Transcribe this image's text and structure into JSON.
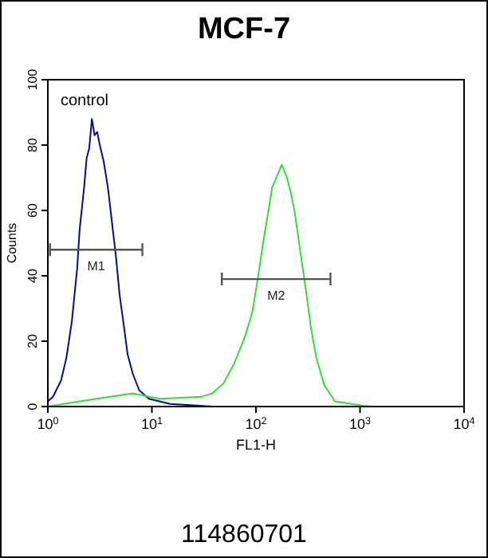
{
  "chart_data": {
    "type": "line",
    "title": "MCF-7",
    "xlabel": "FL1-H",
    "ylabel": "Counts",
    "log": "x",
    "xlim": [
      1,
      10000
    ],
    "ylim": [
      0,
      100
    ],
    "xticks": [
      {
        "value": 1,
        "label": "10$^{0}$"
      },
      {
        "value": 10,
        "label": "10$^{1}$"
      },
      {
        "value": 100,
        "label": "10$^{2}$"
      },
      {
        "value": 1000,
        "label": "10$^{3}$"
      },
      {
        "value": 10000,
        "label": "10$^{4}$"
      }
    ],
    "yticks": [
      0,
      20,
      40,
      60,
      80,
      100
    ],
    "grid": false,
    "marker": "none",
    "line_style": "solid",
    "annotations": [
      "control",
      "114860701"
    ],
    "series": [
      {
        "color": "#0a0a8c",
        "x": [
          1.0,
          1.12,
          1.34,
          1.51,
          1.7,
          1.91,
          2.02,
          2.23,
          2.36,
          2.5,
          2.65,
          2.81,
          2.98,
          3.16,
          3.44,
          3.78,
          4.11,
          4.51,
          4.9,
          5.31,
          5.84,
          6.56,
          7.55,
          9.36,
          15,
          38
        ],
        "values": [
          1.6,
          3,
          8,
          15,
          26,
          42,
          54,
          67,
          76,
          79,
          88,
          83,
          84,
          80,
          75,
          67,
          57,
          46,
          34,
          26,
          16,
          10,
          5,
          2.4,
          0.8,
          0
        ]
      },
      {
        "color": "#33dd33",
        "x": [
          1,
          2.02,
          6.56,
          11.8,
          30,
          38,
          48.5,
          61.5,
          77.7,
          92.5,
          104,
          117,
          132,
          143,
          157,
          177,
          199,
          218,
          237,
          268,
          301,
          338,
          380,
          454,
          574,
          1040,
          1300
        ],
        "values": [
          0,
          1.6,
          4,
          2.4,
          3,
          4,
          7,
          13,
          21,
          29,
          39,
          50,
          60,
          67,
          70,
          74,
          70,
          65,
          59,
          47,
          36,
          24,
          15,
          6.5,
          1.6,
          0.3,
          0
        ]
      },
      {
        "name": "M1",
        "color": "#555555",
        "x": [
          1.05,
          8.1
        ],
        "values": [
          48,
          48
        ]
      },
      {
        "name": "M2",
        "color": "#555555",
        "x": [
          47,
          520
        ],
        "values": [
          39,
          39
        ]
      }
    ]
  }
}
